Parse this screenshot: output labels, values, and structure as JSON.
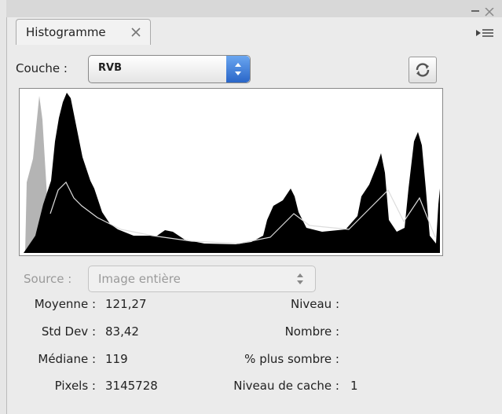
{
  "tab": {
    "title": "Histogramme"
  },
  "channel": {
    "label": "Couche :",
    "value": "RVB"
  },
  "source": {
    "label": "Source :",
    "value": "Image entière"
  },
  "stats_left": [
    {
      "label": "Moyenne :",
      "value": "121,27"
    },
    {
      "label": "Std Dev :",
      "value": "83,42"
    },
    {
      "label": "Médiane :",
      "value": "119"
    },
    {
      "label": "Pixels :",
      "value": "3145728"
    }
  ],
  "stats_right": [
    {
      "label": "Niveau :"
    },
    {
      "label": "Nombre :"
    },
    {
      "label": "% plus sombre :"
    },
    {
      "label": "Niveau de cache :",
      "value": "1"
    }
  ]
}
